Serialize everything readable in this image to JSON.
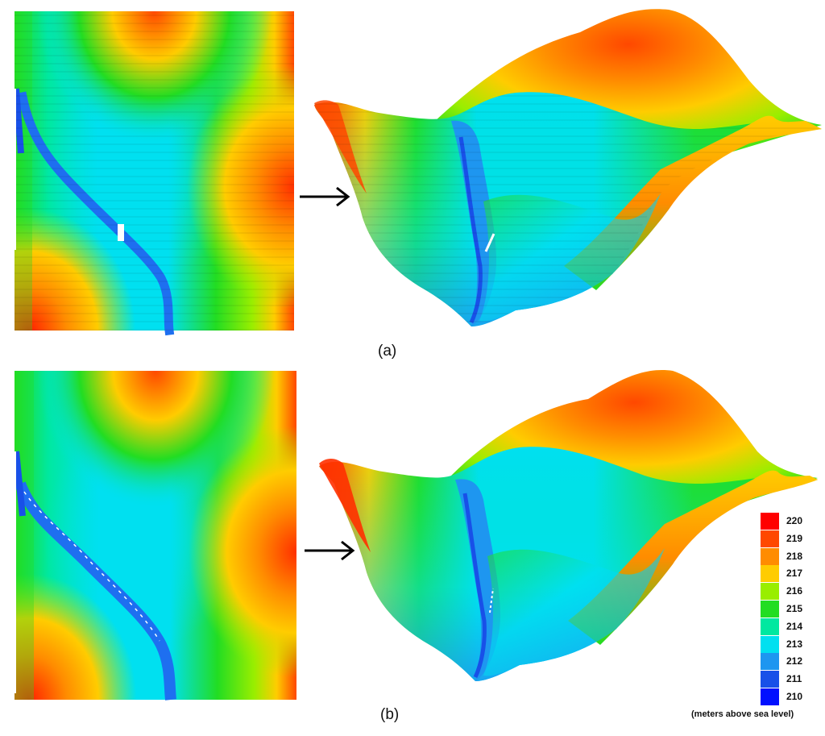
{
  "panels": [
    {
      "caption": "(a)"
    },
    {
      "caption": "(b)"
    }
  ],
  "legend": {
    "unit": "(meters above sea level)",
    "entries": [
      {
        "label": "220",
        "color": "#ff0000"
      },
      {
        "label": "219",
        "color": "#ff4800"
      },
      {
        "label": "218",
        "color": "#ff8c00"
      },
      {
        "label": "217",
        "color": "#ffcc00"
      },
      {
        "label": "216",
        "color": "#99ee00"
      },
      {
        "label": "215",
        "color": "#22dd22"
      },
      {
        "label": "214",
        "color": "#00e8a0"
      },
      {
        "label": "213",
        "color": "#00e0f0"
      },
      {
        "label": "212",
        "color": "#1e96f0"
      },
      {
        "label": "211",
        "color": "#1850e8"
      },
      {
        "label": "210",
        "color": "#0010ff"
      }
    ]
  },
  "colors": {
    "low": "#0010ff",
    "mid": "#00e0f0",
    "high": "#ff0000",
    "arrow": "#000000"
  }
}
